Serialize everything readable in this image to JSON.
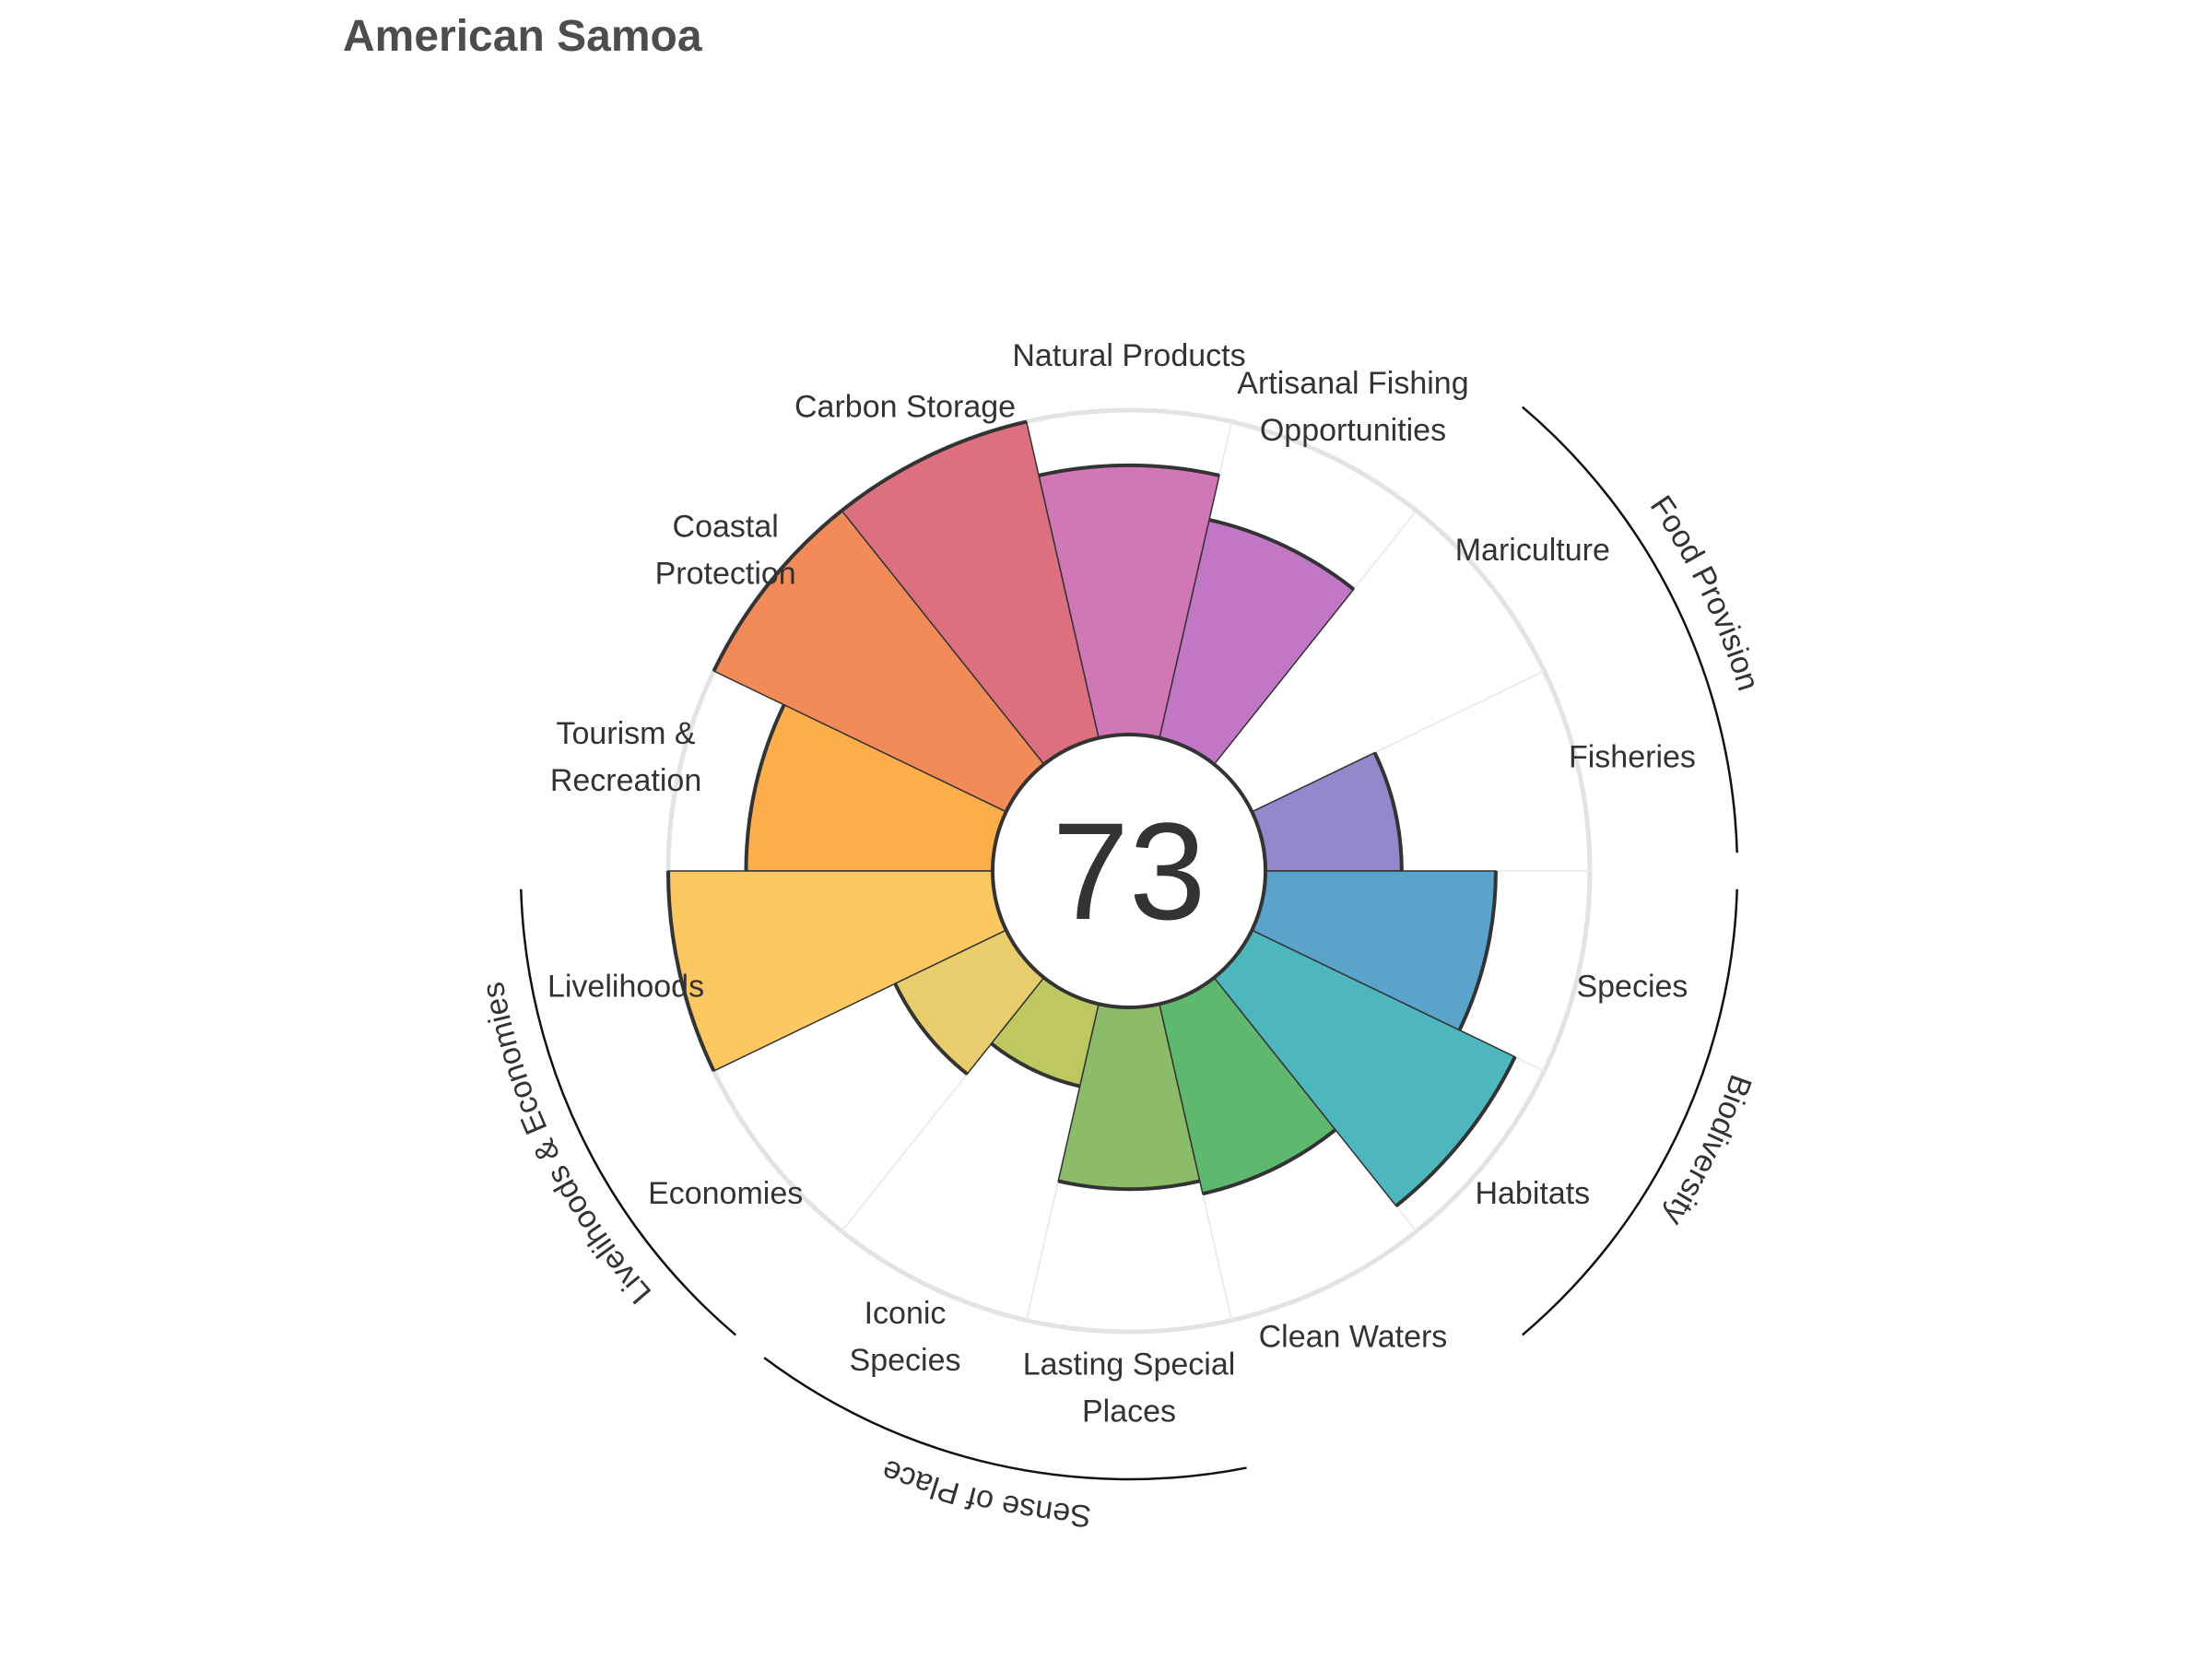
{
  "chart_data": {
    "type": "rose",
    "title": "American Samoa",
    "overall_score": "73",
    "max_value": 100,
    "segments": [
      {
        "name": "Fisheries",
        "label_lines": [
          "Fisheries"
        ],
        "value": 42,
        "color": "#9189cc",
        "group": "Food Provision"
      },
      {
        "name": "Mariculture",
        "label_lines": [
          "Mariculture"
        ],
        "value": 0,
        "color": "#a178c8",
        "group": "Food Provision"
      },
      {
        "name": "Artisanal Fishing Opportunities",
        "label_lines": [
          "Artisanal Fishing",
          "Opportunities"
        ],
        "value": 69,
        "color": "#c276c6",
        "group": null
      },
      {
        "name": "Natural Products",
        "label_lines": [
          "Natural Products"
        ],
        "value": 83,
        "color": "#d176b6",
        "group": null
      },
      {
        "name": "Carbon Storage",
        "label_lines": [
          "Carbon Storage"
        ],
        "value": 100,
        "color": "#dc707e",
        "group": null
      },
      {
        "name": "Coastal Protection",
        "label_lines": [
          "Coastal",
          "Protection"
        ],
        "value": 100,
        "color": "#f28b58",
        "group": null
      },
      {
        "name": "Tourism & Recreation",
        "label_lines": [
          "Tourism &",
          "Recreation"
        ],
        "value": 76,
        "color": "#fdae4b",
        "group": null
      },
      {
        "name": "Livelihoods",
        "label_lines": [
          "Livelihoods"
        ],
        "value": 100,
        "color": "#fdc761",
        "group": "Livelihoods & Economies"
      },
      {
        "name": "Economies",
        "label_lines": [
          "Economies"
        ],
        "value": 38,
        "color": "#e9cd6d",
        "group": "Livelihoods & Economies"
      },
      {
        "name": "Iconic Species",
        "label_lines": [
          "Iconic",
          "Species"
        ],
        "value": 26,
        "color": "#bfc860",
        "group": "Sense of Place"
      },
      {
        "name": "Lasting Special Places",
        "label_lines": [
          "Lasting Special",
          "Places"
        ],
        "value": 56,
        "color": "#8cbb6a",
        "group": "Sense of Place"
      },
      {
        "name": "Clean Waters",
        "label_lines": [
          "Clean Waters"
        ],
        "value": 60,
        "color": "#5eb86e",
        "group": null
      },
      {
        "name": "Habitats",
        "label_lines": [
          "Habitats"
        ],
        "value": 90,
        "color": "#4eb6bd",
        "group": "Biodiversity"
      },
      {
        "name": "Species",
        "label_lines": [
          "Species"
        ],
        "value": 71,
        "color": "#5aa3cb",
        "group": "Biodiversity"
      }
    ],
    "groups": [
      {
        "name": "Food Provision",
        "start": 0,
        "end": 1
      },
      {
        "name": "Biodiversity",
        "start": 12,
        "end": 13
      },
      {
        "name": "Livelihoods & Economies",
        "start": 7,
        "end": 8
      },
      {
        "name": "Sense of Place",
        "start": 9,
        "end": 10
      }
    ]
  }
}
